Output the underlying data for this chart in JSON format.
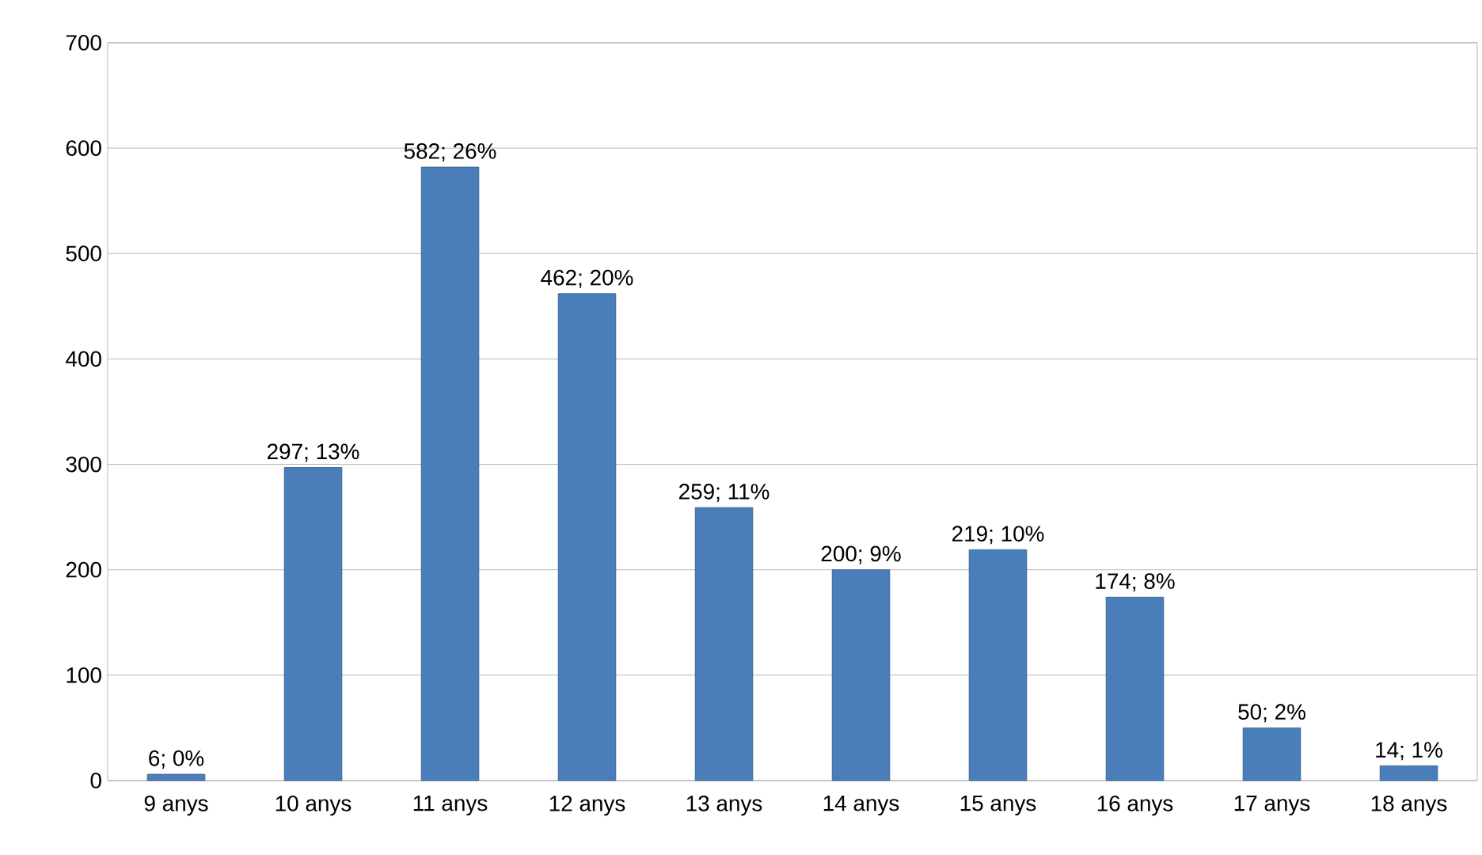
{
  "chart_data": {
    "type": "bar",
    "categories": [
      "9 anys",
      "10 anys",
      "11 anys",
      "12 anys",
      "13 anys",
      "14 anys",
      "15 anys",
      "16 anys",
      "17 anys",
      "18 anys"
    ],
    "values": [
      6,
      297,
      582,
      462,
      259,
      200,
      219,
      174,
      50,
      14
    ],
    "value_labels": [
      "6; 0%",
      "297; 13%",
      "582; 26%",
      "462; 20%",
      "259; 11%",
      "200; 9%",
      "219; 10%",
      "174; 8%",
      "50; 2%",
      "14; 1%"
    ],
    "color": "#4a7ebb",
    "ylim": [
      0,
      700
    ],
    "yticks": [
      0,
      100,
      200,
      300,
      400,
      500,
      600,
      700
    ],
    "grid": "y"
  }
}
